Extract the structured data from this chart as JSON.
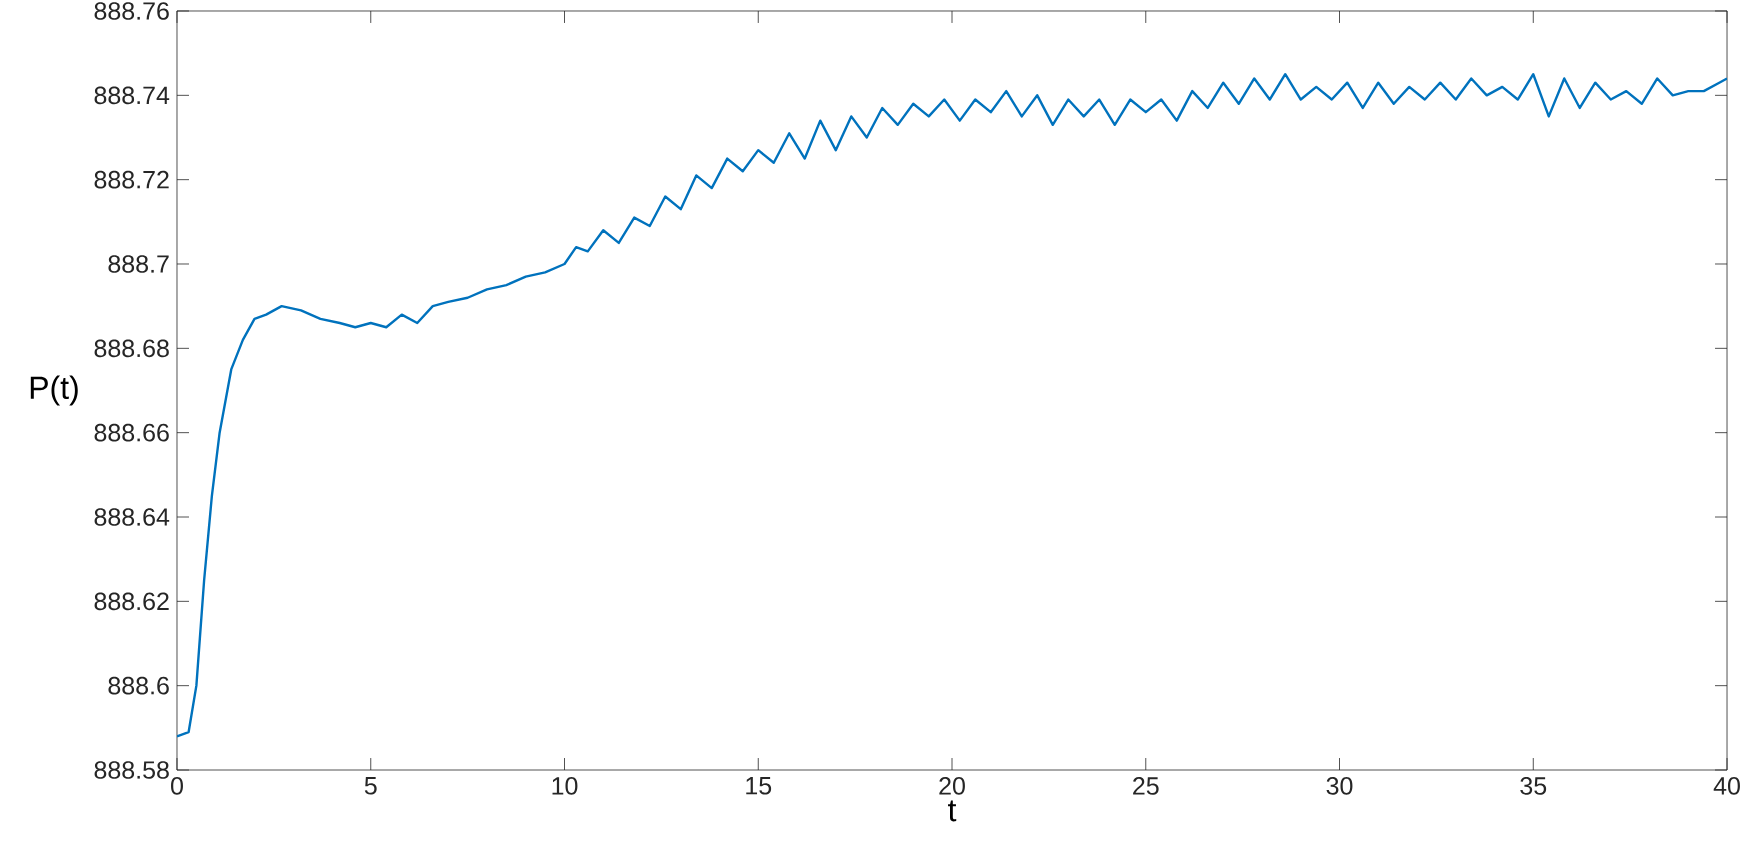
{
  "chart_data": {
    "type": "line",
    "xlabel": "t",
    "ylabel": "P(t)",
    "xlim": [
      0,
      40
    ],
    "xticks": [
      0,
      5,
      10,
      15,
      20,
      25,
      30,
      35,
      40
    ],
    "ylim": [
      888.58,
      888.76
    ],
    "yticks": [
      888.58,
      888.6,
      888.62,
      888.64,
      888.66,
      888.68,
      888.7,
      888.72,
      888.74,
      888.76
    ],
    "series": [
      {
        "color": "#0072bd",
        "x": [
          0,
          0.3,
          0.5,
          0.7,
          0.9,
          1.1,
          1.4,
          1.7,
          2.0,
          2.3,
          2.7,
          3.2,
          3.7,
          4.2,
          4.6,
          5.0,
          5.4,
          5.8,
          6.2,
          6.6,
          7.0,
          7.5,
          8.0,
          8.5,
          9.0,
          9.5,
          10.0,
          10.3,
          10.6,
          11.0,
          11.4,
          11.8,
          12.2,
          12.6,
          13.0,
          13.4,
          13.8,
          14.2,
          14.6,
          15.0,
          15.4,
          15.8,
          16.2,
          16.6,
          17.0,
          17.4,
          17.8,
          18.2,
          18.6,
          19.0,
          19.4,
          19.8,
          20.2,
          20.6,
          21.0,
          21.4,
          21.8,
          22.2,
          22.6,
          23.0,
          23.4,
          23.8,
          24.2,
          24.6,
          25.0,
          25.4,
          25.8,
          26.2,
          26.6,
          27.0,
          27.4,
          27.8,
          28.2,
          28.6,
          29.0,
          29.4,
          29.8,
          30.2,
          30.6,
          31.0,
          31.4,
          31.8,
          32.2,
          32.6,
          33.0,
          33.4,
          33.8,
          34.2,
          34.6,
          35.0,
          35.4,
          35.8,
          36.2,
          36.6,
          37.0,
          37.4,
          37.8,
          38.2,
          38.6,
          39.0,
          39.4,
          39.8,
          40.0
        ],
        "values": [
          888.588,
          888.589,
          888.6,
          888.625,
          888.645,
          888.66,
          888.675,
          888.682,
          888.687,
          888.688,
          888.69,
          888.689,
          888.687,
          888.686,
          888.685,
          888.686,
          888.685,
          888.688,
          888.686,
          888.69,
          888.691,
          888.692,
          888.694,
          888.695,
          888.697,
          888.698,
          888.7,
          888.704,
          888.703,
          888.708,
          888.705,
          888.711,
          888.709,
          888.716,
          888.713,
          888.721,
          888.718,
          888.725,
          888.722,
          888.727,
          888.724,
          888.731,
          888.725,
          888.734,
          888.727,
          888.735,
          888.73,
          888.737,
          888.733,
          888.738,
          888.735,
          888.739,
          888.734,
          888.739,
          888.736,
          888.741,
          888.735,
          888.74,
          888.733,
          888.739,
          888.735,
          888.739,
          888.733,
          888.739,
          888.736,
          888.739,
          888.734,
          888.741,
          888.737,
          888.743,
          888.738,
          888.744,
          888.739,
          888.745,
          888.739,
          888.742,
          888.739,
          888.743,
          888.737,
          888.743,
          888.738,
          888.742,
          888.739,
          888.743,
          888.739,
          888.744,
          888.74,
          888.742,
          888.739,
          888.745,
          888.735,
          888.744,
          888.737,
          888.743,
          888.739,
          888.741,
          888.738,
          888.744,
          888.74,
          888.741,
          888.741,
          888.743,
          888.744
        ]
      }
    ]
  }
}
